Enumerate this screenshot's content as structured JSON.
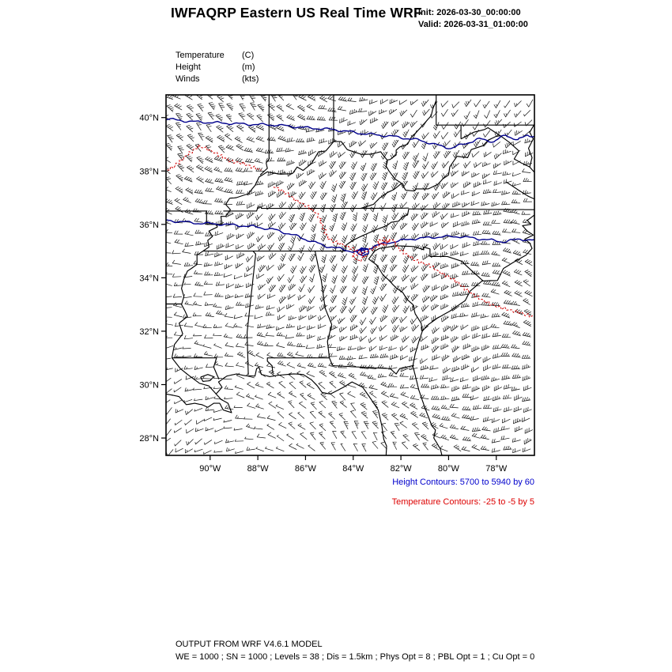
{
  "header": {
    "title": "IWFAQRP Eastern US Real Time WRF",
    "init_line": "Init: 2026-03-30_00:00:00",
    "valid_line": "Valid: 2026-03-31_01:00:00"
  },
  "legend": {
    "items": [
      {
        "name": "Temperature",
        "unit": "(C)"
      },
      {
        "name": "Height",
        "unit": "(m)"
      },
      {
        "name": "Winds",
        "unit": "(kts)"
      }
    ]
  },
  "captions": {
    "height": {
      "text": "Height Contours: 5700 to 5940 by 60",
      "color": "#0000CC"
    },
    "temperature": {
      "text": "Temperature Contours: -25 to -5 by 5",
      "color": "#DD0000"
    }
  },
  "footer": {
    "line1": "OUTPUT FROM WRF V4.6.1 MODEL",
    "line2": "WE = 1000 ; SN = 1000 ; Levels = 38 ; Dis = 1.5km ; Phys Opt = 8 ; PBL Opt = 1 ; Cu Opt = 0"
  },
  "chart_data": {
    "type": "map",
    "title": "IWFAQRP Eastern US Real Time WRF",
    "region": "Southeastern United States",
    "projection_bounds": {
      "lon": [
        -91.85,
        -76.4
      ],
      "lat": [
        27.35,
        40.85
      ]
    },
    "x_axis": {
      "ticks": [
        {
          "label": "90°W",
          "lon": -90
        },
        {
          "label": "88°W",
          "lon": -88
        },
        {
          "label": "86°W",
          "lon": -86
        },
        {
          "label": "84°W",
          "lon": -84
        },
        {
          "label": "82°W",
          "lon": -82
        },
        {
          "label": "80°W",
          "lon": -80
        },
        {
          "label": "78°W",
          "lon": -78
        }
      ]
    },
    "y_axis": {
      "ticks": [
        {
          "label": "40°N",
          "lat": 40
        },
        {
          "label": "38°N",
          "lat": 38
        },
        {
          "label": "36°N",
          "lat": 36
        },
        {
          "label": "34°N",
          "lat": 34
        },
        {
          "label": "32°N",
          "lat": 32
        },
        {
          "label": "30°N",
          "lat": 30
        },
        {
          "label": "28°N",
          "lat": 28
        }
      ]
    },
    "height_contours": {
      "range_text": "5700 to 5940 by 60",
      "min": 5700,
      "max": 5940,
      "interval": 60,
      "color": "#00008B",
      "lines": [
        {
          "points": [
            [
              -91.85,
              39.95
            ],
            [
              -90.8,
              39.85
            ],
            [
              -89.6,
              39.8
            ],
            [
              -88.4,
              39.75
            ],
            [
              -87.2,
              39.72
            ],
            [
              -86.0,
              39.62
            ],
            [
              -84.8,
              39.55
            ],
            [
              -83.6,
              39.4
            ],
            [
              -82.4,
              39.3
            ],
            [
              -81.2,
              39.15
            ],
            [
              -80.4,
              38.95
            ],
            [
              -79.9,
              38.85
            ],
            [
              -79.4,
              39.0
            ],
            [
              -78.7,
              39.2
            ],
            [
              -78.1,
              39.1
            ],
            [
              -77.6,
              39.35
            ],
            [
              -77.1,
              39.15
            ],
            [
              -76.7,
              39.35
            ],
            [
              -76.4,
              39.3
            ]
          ]
        },
        {
          "points": [
            [
              -91.85,
              36.15
            ],
            [
              -90.6,
              36.05
            ],
            [
              -89.4,
              36.0
            ],
            [
              -88.2,
              35.92
            ],
            [
              -87.3,
              35.8
            ],
            [
              -86.5,
              35.6
            ],
            [
              -85.8,
              35.38
            ],
            [
              -85.1,
              35.18
            ],
            [
              -84.5,
              35.08
            ],
            [
              -84.0,
              34.98
            ],
            [
              -83.55,
              35.02
            ],
            [
              -83.15,
              35.18
            ],
            [
              -82.5,
              35.32
            ],
            [
              -81.6,
              35.45
            ],
            [
              -80.6,
              35.52
            ],
            [
              -79.6,
              35.55
            ],
            [
              -78.6,
              35.45
            ],
            [
              -77.7,
              35.35
            ],
            [
              -77.0,
              35.45
            ],
            [
              -76.4,
              35.4
            ]
          ]
        },
        {
          "points": [
            [
              -83.85,
              35.02
            ],
            [
              -83.65,
              35.12
            ],
            [
              -83.42,
              35.05
            ],
            [
              -83.38,
              34.9
            ],
            [
              -83.58,
              34.8
            ],
            [
              -83.8,
              34.87
            ],
            [
              -83.85,
              35.02
            ]
          ]
        },
        {
          "points": [
            [
              -83.7,
              35.0
            ],
            [
              -83.58,
              35.06
            ],
            [
              -83.5,
              34.95
            ],
            [
              -83.62,
              34.88
            ],
            [
              -83.7,
              35.0
            ]
          ]
        }
      ]
    },
    "temperature_contours": {
      "range_text": "-25 to -5 by 5",
      "min": -25,
      "max": -5,
      "interval": 5,
      "color": "#D00000",
      "style": "dashed",
      "lines": [
        {
          "points": [
            [
              -91.8,
              38.05
            ],
            [
              -91.4,
              38.25
            ],
            [
              -90.95,
              38.65
            ],
            [
              -90.45,
              38.9
            ],
            [
              -90.0,
              38.8
            ],
            [
              -89.55,
              38.55
            ],
            [
              -89.1,
              38.35
            ],
            [
              -88.6,
              38.3
            ],
            [
              -88.15,
              38.15
            ],
            [
              -87.85,
              38.05
            ]
          ]
        },
        {
          "points": [
            [
              -87.3,
              37.45
            ],
            [
              -86.85,
              37.15
            ],
            [
              -86.35,
              36.9
            ],
            [
              -85.9,
              36.65
            ],
            [
              -85.5,
              36.35
            ],
            [
              -85.35,
              36.0
            ],
            [
              -85.15,
              35.6
            ],
            [
              -84.8,
              35.35
            ],
            [
              -84.4,
              35.25
            ],
            [
              -84.0,
              35.1
            ],
            [
              -83.55,
              34.95
            ],
            [
              -83.1,
              35.1
            ],
            [
              -82.65,
              35.3
            ],
            [
              -82.35,
              35.45
            ],
            [
              -82.2,
              35.15
            ],
            [
              -81.8,
              34.85
            ],
            [
              -81.3,
              34.65
            ],
            [
              -80.75,
              34.45
            ],
            [
              -80.2,
              34.15
            ],
            [
              -79.75,
              33.95
            ],
            [
              -79.2,
              33.55
            ],
            [
              -78.7,
              33.25
            ],
            [
              -78.15,
              33.0
            ],
            [
              -77.55,
              32.85
            ],
            [
              -76.95,
              32.7
            ],
            [
              -76.4,
              32.55
            ]
          ]
        },
        {
          "points": [
            [
              -83.0,
              35.35
            ],
            [
              -82.7,
              35.5
            ],
            [
              -82.45,
              35.35
            ],
            [
              -82.7,
              35.2
            ],
            [
              -83.0,
              35.35
            ]
          ]
        },
        {
          "points": [
            [
              -84.05,
              34.8
            ],
            [
              -83.75,
              34.9
            ],
            [
              -83.5,
              34.75
            ],
            [
              -83.8,
              34.62
            ],
            [
              -84.05,
              34.8
            ]
          ]
        }
      ]
    },
    "wind_field": {
      "display": "barbs",
      "units": "kts",
      "approx_spacing_px": 13,
      "coverage": "entire map"
    }
  }
}
